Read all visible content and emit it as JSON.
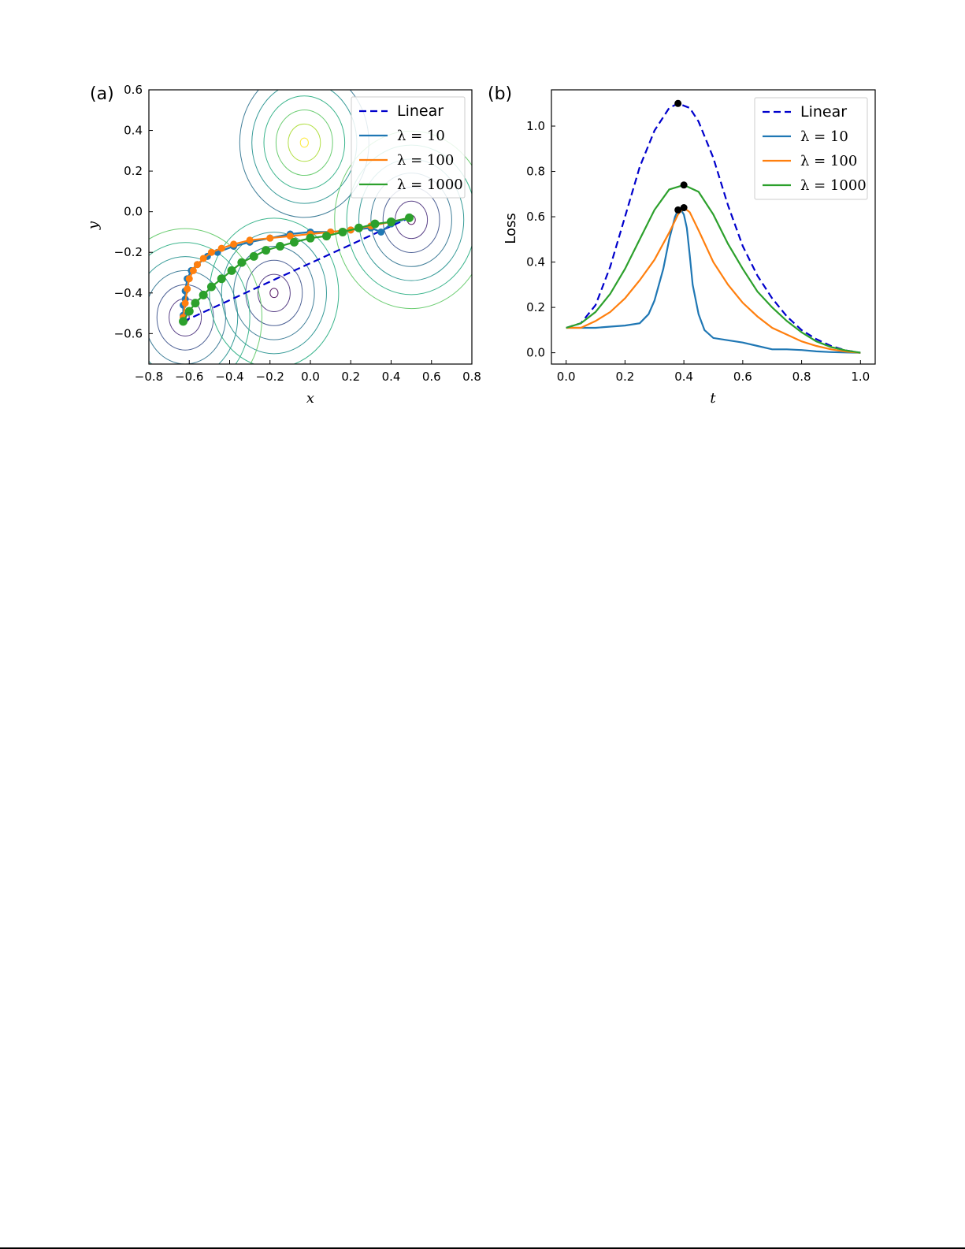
{
  "chart_data": [
    {
      "panel_label": "(a)",
      "type": "line",
      "background": "contour",
      "xlabel": "x",
      "ylabel": "y",
      "xlim": [
        -0.8,
        0.8
      ],
      "ylim": [
        -0.75,
        0.6
      ],
      "xticks": [
        "−0.8",
        "−0.6",
        "−0.4",
        "−0.2",
        "0.0",
        "0.2",
        "0.4",
        "0.6",
        "0.8"
      ],
      "xtick_values": [
        -0.8,
        -0.6,
        -0.4,
        -0.2,
        0.0,
        0.2,
        0.4,
        0.6,
        0.8
      ],
      "yticks": [
        "0.6",
        "0.4",
        "0.2",
        "0.0",
        "−0.2",
        "−0.4",
        "−0.6"
      ],
      "ytick_values": [
        0.6,
        0.4,
        0.2,
        0.0,
        -0.2,
        -0.4,
        -0.6
      ],
      "legend_position": "top-right",
      "series": [
        {
          "name": "Linear",
          "style": "dashed",
          "color": "#0000cc",
          "x": [
            -0.63,
            0.49
          ],
          "y": [
            -0.54,
            -0.03
          ]
        },
        {
          "name": "λ = 10",
          "style": "solid-markers",
          "color": "#1f77b4",
          "x": [
            -0.63,
            -0.63,
            -0.62,
            -0.62,
            -0.61,
            -0.59,
            -0.56,
            -0.51,
            -0.46,
            -0.38,
            -0.3,
            -0.2,
            -0.1,
            0.0,
            0.1,
            0.2,
            0.3,
            0.35,
            0.4,
            0.49
          ],
          "y": [
            -0.51,
            -0.46,
            -0.43,
            -0.39,
            -0.33,
            -0.29,
            -0.26,
            -0.22,
            -0.2,
            -0.17,
            -0.15,
            -0.13,
            -0.11,
            -0.1,
            -0.1,
            -0.09,
            -0.08,
            -0.1,
            -0.06,
            -0.03
          ]
        },
        {
          "name": "λ = 100",
          "style": "solid-markers",
          "color": "#ff7f0e",
          "x": [
            -0.63,
            -0.62,
            -0.61,
            -0.6,
            -0.58,
            -0.56,
            -0.53,
            -0.49,
            -0.44,
            -0.38,
            -0.3,
            -0.2,
            -0.1,
            0.0,
            0.1,
            0.2,
            0.3,
            0.4,
            0.49
          ],
          "y": [
            -0.52,
            -0.45,
            -0.38,
            -0.33,
            -0.29,
            -0.26,
            -0.23,
            -0.2,
            -0.18,
            -0.16,
            -0.14,
            -0.13,
            -0.12,
            -0.11,
            -0.1,
            -0.09,
            -0.07,
            -0.05,
            -0.03
          ]
        },
        {
          "name": "λ = 1000",
          "style": "solid-markers",
          "color": "#2ca02c",
          "x": [
            -0.63,
            -0.6,
            -0.57,
            -0.53,
            -0.49,
            -0.44,
            -0.39,
            -0.34,
            -0.28,
            -0.22,
            -0.15,
            -0.08,
            0.0,
            0.08,
            0.16,
            0.24,
            0.32,
            0.4,
            0.49
          ],
          "y": [
            -0.54,
            -0.49,
            -0.45,
            -0.41,
            -0.37,
            -0.33,
            -0.29,
            -0.25,
            -0.22,
            -0.19,
            -0.17,
            -0.15,
            -0.13,
            -0.12,
            -0.1,
            -0.08,
            -0.06,
            -0.05,
            -0.03
          ]
        }
      ]
    },
    {
      "panel_label": "(b)",
      "type": "line",
      "xlabel": "t",
      "ylabel": "Loss",
      "xlim": [
        -0.05,
        1.05
      ],
      "ylim": [
        -0.05,
        1.16
      ],
      "xticks": [
        "0.0",
        "0.2",
        "0.4",
        "0.6",
        "0.8",
        "1.0"
      ],
      "xtick_values": [
        0.0,
        0.2,
        0.4,
        0.6,
        0.8,
        1.0
      ],
      "yticks": [
        "0.0",
        "0.2",
        "0.4",
        "0.6",
        "0.8",
        "1.0"
      ],
      "ytick_values": [
        0.0,
        0.2,
        0.4,
        0.6,
        0.8,
        1.0
      ],
      "legend_position": "top-right",
      "series": [
        {
          "name": "Linear",
          "style": "dashed",
          "color": "#0000cc",
          "x": [
            0.0,
            0.05,
            0.1,
            0.15,
            0.2,
            0.25,
            0.3,
            0.35,
            0.38,
            0.42,
            0.45,
            0.5,
            0.55,
            0.6,
            0.65,
            0.7,
            0.75,
            0.8,
            0.85,
            0.9,
            0.95,
            1.0
          ],
          "y": [
            0.11,
            0.13,
            0.21,
            0.38,
            0.6,
            0.82,
            0.98,
            1.08,
            1.1,
            1.08,
            1.02,
            0.86,
            0.65,
            0.47,
            0.34,
            0.24,
            0.16,
            0.1,
            0.06,
            0.03,
            0.01,
            0.0
          ],
          "peak": {
            "x": 0.38,
            "y": 1.1
          }
        },
        {
          "name": "λ = 10",
          "style": "solid",
          "color": "#1f77b4",
          "x": [
            0.0,
            0.05,
            0.1,
            0.15,
            0.2,
            0.25,
            0.28,
            0.3,
            0.33,
            0.35,
            0.37,
            0.38,
            0.39,
            0.4,
            0.41,
            0.42,
            0.43,
            0.45,
            0.47,
            0.5,
            0.55,
            0.6,
            0.65,
            0.7,
            0.75,
            0.8,
            0.85,
            0.9,
            0.95,
            1.0
          ],
          "y": [
            0.11,
            0.11,
            0.11,
            0.115,
            0.12,
            0.13,
            0.17,
            0.23,
            0.37,
            0.5,
            0.6,
            0.63,
            0.63,
            0.61,
            0.55,
            0.43,
            0.3,
            0.17,
            0.1,
            0.065,
            0.055,
            0.045,
            0.03,
            0.015,
            0.015,
            0.012,
            0.006,
            0.003,
            0.001,
            0.0
          ],
          "peak": {
            "x": 0.38,
            "y": 0.63
          }
        },
        {
          "name": "λ = 100",
          "style": "solid",
          "color": "#ff7f0e",
          "x": [
            0.0,
            0.05,
            0.1,
            0.15,
            0.2,
            0.25,
            0.3,
            0.35,
            0.38,
            0.4,
            0.42,
            0.45,
            0.5,
            0.55,
            0.6,
            0.65,
            0.7,
            0.75,
            0.8,
            0.85,
            0.9,
            0.95,
            1.0
          ],
          "y": [
            0.11,
            0.11,
            0.14,
            0.18,
            0.24,
            0.32,
            0.41,
            0.53,
            0.61,
            0.64,
            0.62,
            0.54,
            0.4,
            0.3,
            0.22,
            0.16,
            0.11,
            0.08,
            0.05,
            0.03,
            0.015,
            0.005,
            0.0
          ],
          "peak": {
            "x": 0.4,
            "y": 0.64
          }
        },
        {
          "name": "λ = 1000",
          "style": "solid",
          "color": "#2ca02c",
          "x": [
            0.0,
            0.05,
            0.1,
            0.15,
            0.2,
            0.25,
            0.3,
            0.35,
            0.4,
            0.45,
            0.5,
            0.55,
            0.6,
            0.65,
            0.7,
            0.75,
            0.8,
            0.85,
            0.9,
            0.95,
            1.0
          ],
          "y": [
            0.11,
            0.13,
            0.18,
            0.26,
            0.37,
            0.5,
            0.63,
            0.72,
            0.74,
            0.71,
            0.61,
            0.48,
            0.37,
            0.27,
            0.2,
            0.14,
            0.09,
            0.05,
            0.025,
            0.01,
            0.0
          ],
          "peak": {
            "x": 0.4,
            "y": 0.74
          }
        }
      ]
    }
  ]
}
